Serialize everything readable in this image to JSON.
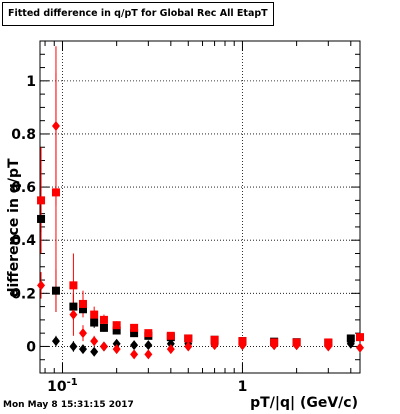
{
  "chart_data": {
    "type": "scatter",
    "title": "Fitted difference in q/pT for Global Rec All EtapT",
    "xlabel": "pT/|q| (GeV/c)",
    "ylabel": "difference in q/pT",
    "x_scale": "log",
    "xlim": [
      0.075,
      4.5
    ],
    "ylim": [
      -0.1,
      1.15
    ],
    "x_tick_labels": [
      "10^-1",
      "1"
    ],
    "y_tick_labels": [
      "0",
      "0.2",
      "0.4",
      "0.6",
      "0.8",
      "1"
    ],
    "grid": true,
    "series": [
      {
        "color": "#000000",
        "marker": "square",
        "x": [
          0.076,
          0.092,
          0.115,
          0.13,
          0.15,
          0.17,
          0.2,
          0.25,
          0.3,
          0.4,
          0.5,
          0.7,
          1.0,
          1.5,
          2.0,
          3.0,
          4.0
        ],
        "y": [
          0.48,
          0.21,
          0.15,
          0.14,
          0.09,
          0.07,
          0.06,
          0.05,
          0.04,
          0.035,
          0.03,
          0.025,
          0.02,
          0.018,
          0.016,
          0.014,
          0.03
        ],
        "yerr": [
          0.05,
          0.08,
          0.05,
          0.03,
          0.02,
          0.015,
          0.01,
          0.01,
          0.008,
          0.006,
          0.005,
          0.004,
          0.004,
          0.004,
          0.004,
          0.005,
          0.008
        ]
      },
      {
        "color": "#000000",
        "marker": "diamond",
        "x": [
          0.092,
          0.115,
          0.13,
          0.15,
          0.17,
          0.2,
          0.25,
          0.3,
          0.4,
          0.5,
          0.7,
          1.0,
          1.5,
          2.0,
          3.0,
          4.0
        ],
        "y": [
          0.02,
          0.0,
          -0.01,
          -0.02,
          0.0,
          0.01,
          0.005,
          0.005,
          0.01,
          0.01,
          0.008,
          0.005,
          0.005,
          0.005,
          0.005,
          0.01
        ],
        "yerr": [
          0.02,
          0.02,
          0.015,
          0.01,
          0.01,
          0.008,
          0.006,
          0.005,
          0.004,
          0.004,
          0.004,
          0.004,
          0.004,
          0.004,
          0.004,
          0.005
        ]
      },
      {
        "color": "#ff0000",
        "marker": "square",
        "x": [
          0.076,
          0.092,
          0.115,
          0.13,
          0.15,
          0.17,
          0.2,
          0.25,
          0.3,
          0.4,
          0.5,
          0.7,
          1.0,
          1.5,
          2.0,
          3.0,
          4.5
        ],
        "y": [
          0.55,
          0.58,
          0.23,
          0.16,
          0.12,
          0.1,
          0.08,
          0.07,
          0.05,
          0.04,
          0.03,
          0.025,
          0.02,
          0.015,
          0.015,
          0.015,
          0.035
        ],
        "yerr": [
          0.2,
          0.45,
          0.12,
          0.05,
          0.03,
          0.02,
          0.015,
          0.01,
          0.008,
          0.006,
          0.005,
          0.004,
          0.004,
          0.004,
          0.004,
          0.005,
          0.008
        ]
      },
      {
        "color": "#ff0000",
        "marker": "diamond",
        "x": [
          0.076,
          0.092,
          0.115,
          0.13,
          0.15,
          0.17,
          0.2,
          0.25,
          0.3,
          0.4,
          0.5,
          0.7,
          1.0,
          1.5,
          2.0,
          3.0,
          4.5
        ],
        "y": [
          0.23,
          0.83,
          0.12,
          0.05,
          0.02,
          0.0,
          -0.01,
          -0.03,
          -0.03,
          -0.01,
          0.0,
          0.005,
          0.005,
          0.005,
          0.005,
          0.0,
          -0.005
        ],
        "yerr": [
          0.05,
          0.3,
          0.08,
          0.03,
          0.02,
          0.015,
          0.01,
          0.01,
          0.008,
          0.006,
          0.005,
          0.004,
          0.004,
          0.004,
          0.004,
          0.004,
          0.006
        ]
      }
    ]
  },
  "footer": {
    "timestamp": "Mon May  8 15:31:15 2017"
  }
}
